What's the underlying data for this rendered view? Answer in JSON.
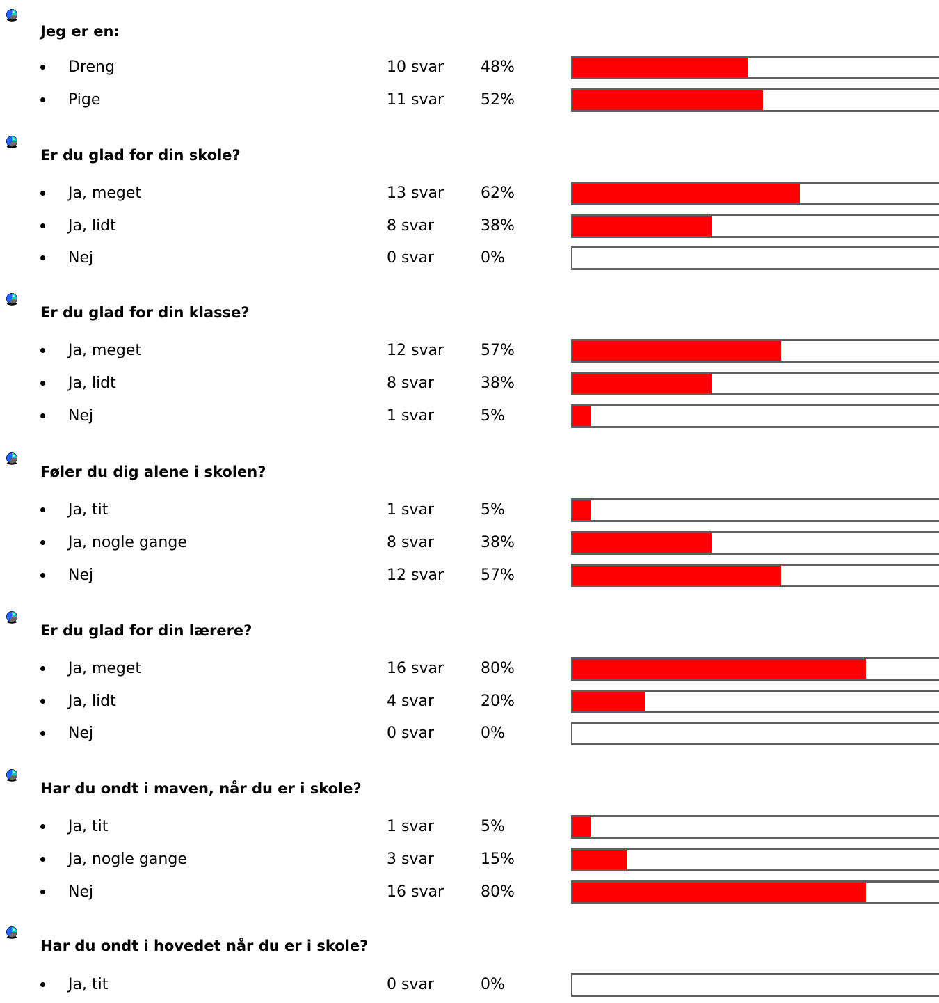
{
  "colors": {
    "bar_fill": "#ff0000",
    "bar_border": "#5f5f5f",
    "background": "#ffffff"
  },
  "questions": [
    {
      "icon": "pie-chart-icon",
      "title": "Jeg er en:",
      "options": [
        {
          "label": "Dreng",
          "count": "10 svar",
          "percent": "48%",
          "fraction": 0.48
        },
        {
          "label": "Pige",
          "count": "11 svar",
          "percent": "52%",
          "fraction": 0.52
        }
      ]
    },
    {
      "icon": "pie-chart-icon",
      "title": "Er du glad for din skole?",
      "options": [
        {
          "label": "Ja, meget",
          "count": "13 svar",
          "percent": "62%",
          "fraction": 0.62
        },
        {
          "label": "Ja, lidt",
          "count": "8 svar",
          "percent": "38%",
          "fraction": 0.38
        },
        {
          "label": "Nej",
          "count": "0 svar",
          "percent": "0%",
          "fraction": 0
        }
      ]
    },
    {
      "icon": "pie-chart-icon",
      "title": "Er du glad for din klasse?",
      "options": [
        {
          "label": "Ja, meget",
          "count": "12 svar",
          "percent": "57%",
          "fraction": 0.57
        },
        {
          "label": "Ja, lidt",
          "count": "8 svar",
          "percent": "38%",
          "fraction": 0.38
        },
        {
          "label": "Nej",
          "count": "1 svar",
          "percent": "5%",
          "fraction": 0.05
        }
      ]
    },
    {
      "icon": "pie-chart-icon",
      "title": "Føler du dig alene i skolen?",
      "options": [
        {
          "label": "Ja, tit",
          "count": "1 svar",
          "percent": "5%",
          "fraction": 0.05
        },
        {
          "label": "Ja, nogle gange",
          "count": "8 svar",
          "percent": "38%",
          "fraction": 0.38
        },
        {
          "label": "Nej",
          "count": "12 svar",
          "percent": "57%",
          "fraction": 0.57
        }
      ]
    },
    {
      "icon": "pie-chart-icon",
      "title": "Er du glad for din lærere?",
      "options": [
        {
          "label": "Ja, meget",
          "count": "16 svar",
          "percent": "80%",
          "fraction": 0.8
        },
        {
          "label": "Ja, lidt",
          "count": "4 svar",
          "percent": "20%",
          "fraction": 0.2
        },
        {
          "label": "Nej",
          "count": "0 svar",
          "percent": "0%",
          "fraction": 0
        }
      ]
    },
    {
      "icon": "pie-chart-icon",
      "title": "Har du ondt i maven, når du er i skole?",
      "options": [
        {
          "label": "Ja, tit",
          "count": "1 svar",
          "percent": "5%",
          "fraction": 0.05
        },
        {
          "label": "Ja, nogle gange",
          "count": "3 svar",
          "percent": "15%",
          "fraction": 0.15
        },
        {
          "label": "Nej",
          "count": "16 svar",
          "percent": "80%",
          "fraction": 0.8
        }
      ]
    },
    {
      "icon": "pie-chart-icon",
      "title": "Har du ondt i hovedet når du er i skole?",
      "options": [
        {
          "label": "Ja, tit",
          "count": "0 svar",
          "percent": "0%",
          "fraction": 0
        }
      ]
    }
  ]
}
